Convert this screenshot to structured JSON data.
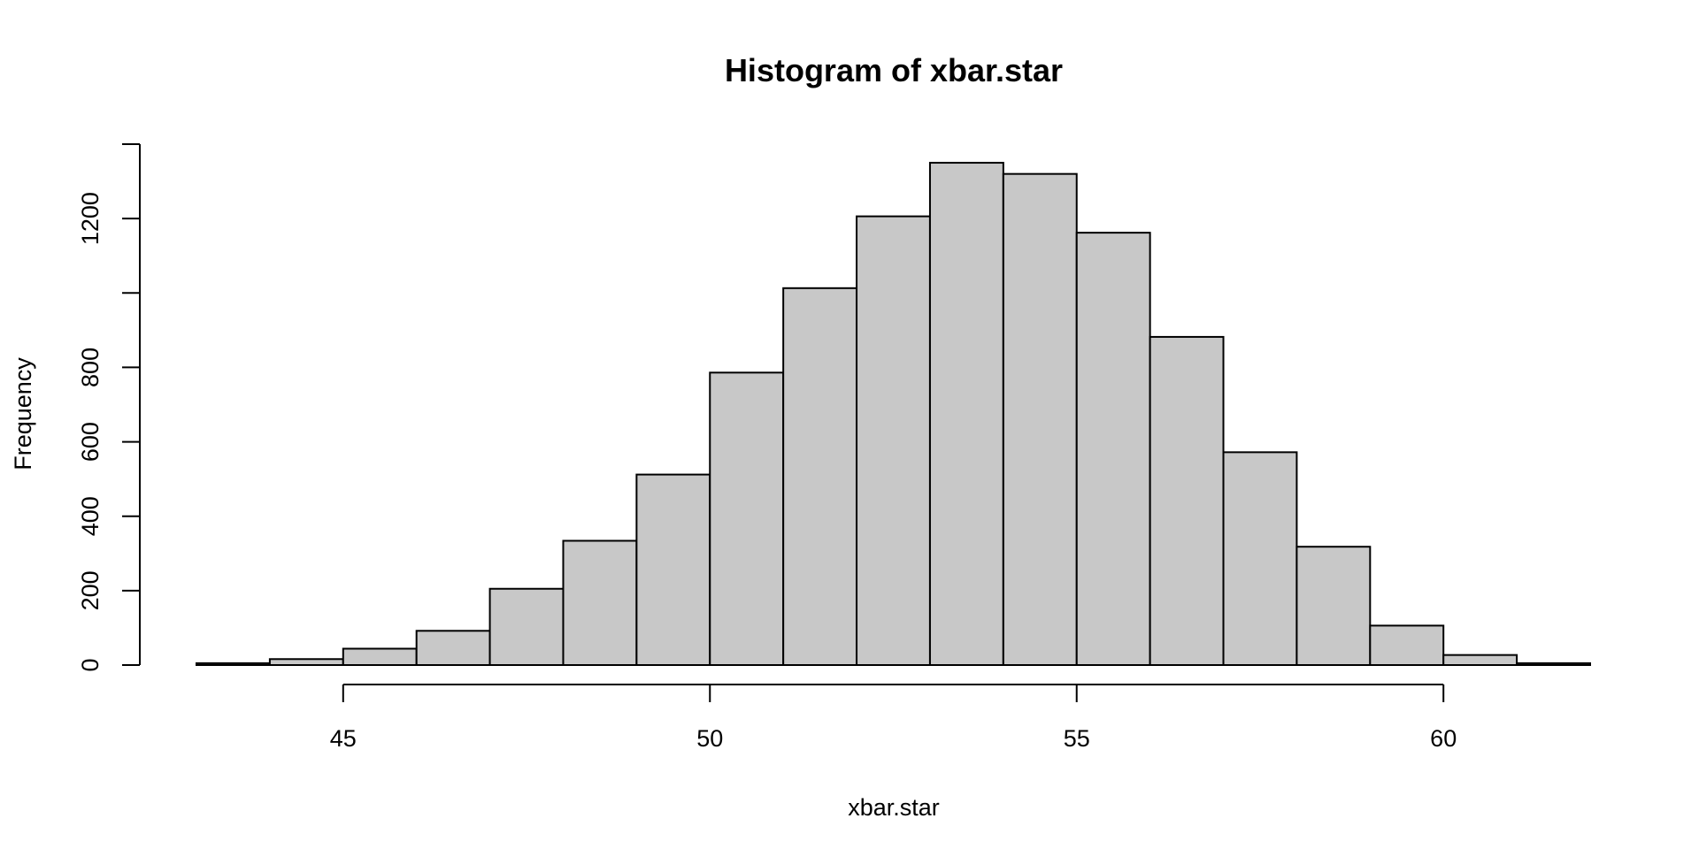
{
  "chart_data": {
    "type": "bar",
    "title": "Histogram of xbar.star",
    "xlabel": "xbar.star",
    "ylabel": "Frequency",
    "bins": [
      {
        "from": 43,
        "to": 44,
        "count": 5
      },
      {
        "from": 44,
        "to": 45,
        "count": 16
      },
      {
        "from": 45,
        "to": 46,
        "count": 44
      },
      {
        "from": 46,
        "to": 47,
        "count": 92
      },
      {
        "from": 47,
        "to": 48,
        "count": 205
      },
      {
        "from": 48,
        "to": 49,
        "count": 334
      },
      {
        "from": 49,
        "to": 50,
        "count": 512
      },
      {
        "from": 50,
        "to": 51,
        "count": 786
      },
      {
        "from": 51,
        "to": 52,
        "count": 1013
      },
      {
        "from": 52,
        "to": 53,
        "count": 1206
      },
      {
        "from": 53,
        "to": 54,
        "count": 1350
      },
      {
        "from": 54,
        "to": 55,
        "count": 1320
      },
      {
        "from": 55,
        "to": 56,
        "count": 1162
      },
      {
        "from": 56,
        "to": 57,
        "count": 882
      },
      {
        "from": 57,
        "to": 58,
        "count": 572
      },
      {
        "from": 58,
        "to": 59,
        "count": 318
      },
      {
        "from": 59,
        "to": 60,
        "count": 106
      },
      {
        "from": 60,
        "to": 61,
        "count": 27
      },
      {
        "from": 61,
        "to": 62,
        "count": 5
      }
    ],
    "xlim": [
      43,
      62
    ],
    "ylim": [
      0,
      1400
    ],
    "x_ticks": [
      45,
      50,
      55,
      60
    ],
    "x_tick_labels": [
      "45",
      "50",
      "55",
      "60"
    ],
    "y_ticks": [
      0,
      200,
      400,
      600,
      800,
      1000,
      1200,
      1400
    ],
    "y_tick_labels": [
      "0",
      "200",
      "400",
      "600",
      "800",
      "",
      "1200",
      ""
    ],
    "grid": false,
    "bar_fill": "#c8c8c8",
    "bar_stroke": "#000000"
  }
}
